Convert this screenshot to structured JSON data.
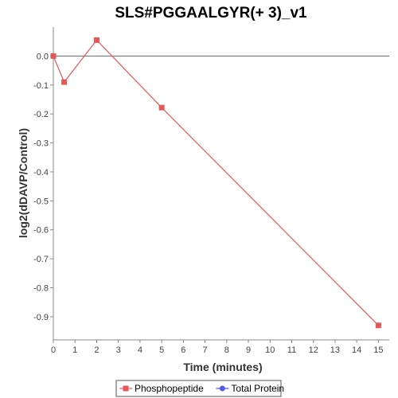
{
  "chart_data": {
    "type": "line",
    "title": "SLS#PGGAALGYR(+ 3)_v1",
    "xlabel": "Time (minutes)",
    "ylabel": "log2(dDAVP/Control)",
    "xlim": [
      0,
      15.5
    ],
    "ylim": [
      -0.98,
      0.1
    ],
    "x_ticks": [
      0,
      1,
      2,
      3,
      4,
      5,
      6,
      7,
      8,
      9,
      10,
      11,
      12,
      13,
      14,
      15
    ],
    "y_ticks": [
      0.0,
      -0.1,
      -0.2,
      -0.3,
      -0.4,
      -0.5,
      -0.6,
      -0.7,
      -0.8,
      -0.9
    ],
    "x_tick_labels": [
      "0",
      "1",
      "2",
      "3",
      "4",
      "5",
      "6",
      "7",
      "8",
      "9",
      "10",
      "11",
      "12",
      "13",
      "14",
      "15"
    ],
    "y_tick_labels": [
      "0.0",
      "-0.1",
      "-0.2",
      "-0.3",
      "-0.4",
      "-0.5",
      "-0.6",
      "-0.7",
      "-0.8",
      "-0.9"
    ],
    "reference_line_y": 0,
    "grid": false,
    "legend_position": "bottom",
    "series": [
      {
        "name": "Phosphopeptide",
        "color": "#e05a5a",
        "marker": "square",
        "x": [
          0,
          0.5,
          2,
          5,
          15
        ],
        "y": [
          0.0,
          -0.09,
          0.055,
          -0.178,
          -0.93
        ]
      },
      {
        "name": "Total Protein",
        "color": "#5a5ae0",
        "marker": "circle",
        "x": [],
        "y": []
      }
    ]
  }
}
